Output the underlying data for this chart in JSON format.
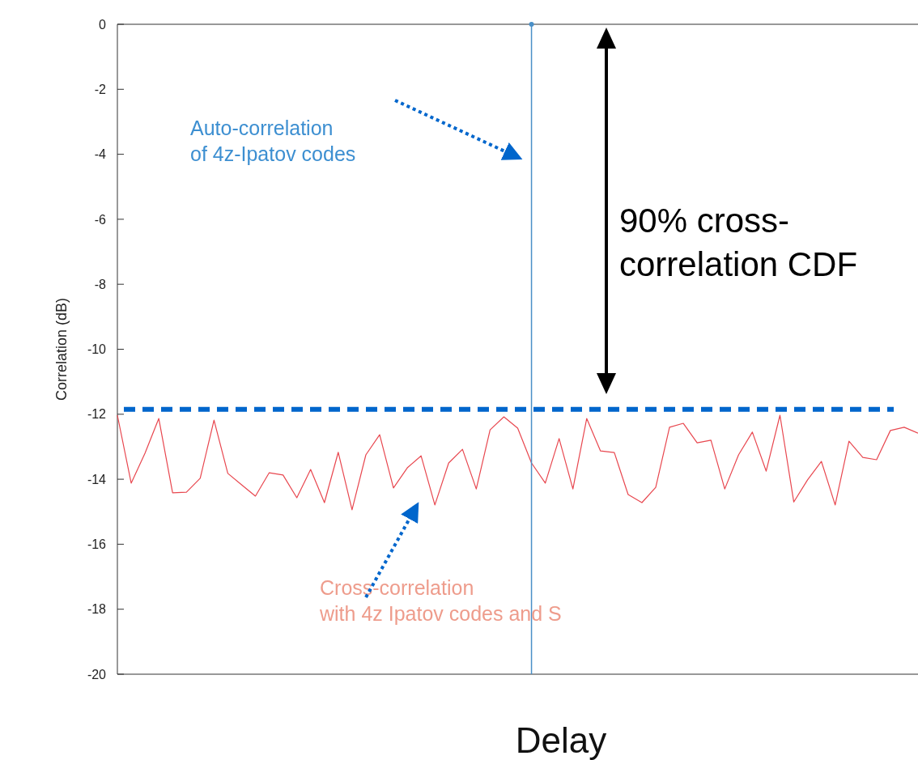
{
  "chart_data": {
    "type": "line",
    "xlabel": "Delay",
    "ylabel": "Correlation (dB)",
    "categories": [
      null,
      null,
      null,
      null,
      null,
      null,
      null,
      null,
      null,
      null,
      null,
      null,
      null,
      null,
      null,
      null,
      null,
      null,
      null,
      null,
      null,
      null,
      null,
      null,
      null,
      null,
      null,
      null,
      null,
      null,
      null,
      null,
      null,
      null,
      null,
      null,
      null,
      null,
      null,
      null,
      null,
      null,
      null,
      null,
      null,
      null,
      null,
      null,
      null,
      null,
      null,
      null,
      null,
      null,
      null,
      null,
      null,
      null,
      null
    ],
    "ylim": [
      -20,
      0
    ],
    "yticks": [
      -20,
      -18,
      -16,
      -14,
      -12,
      -10,
      -8,
      -6,
      -4,
      -2,
      0
    ],
    "tick_labels": "y",
    "marker": "none",
    "series": [
      {
        "color": "#e8474f",
        "values": [
          -12.03,
          -14.12,
          -13.2,
          -12.13,
          -14.42,
          -14.4,
          -13.97,
          -12.18,
          -13.82,
          -14.17,
          -14.52,
          -13.8,
          -13.87,
          -14.57,
          -13.7,
          -14.72,
          -13.17,
          -14.94,
          -13.25,
          -12.63,
          -14.27,
          -13.65,
          -13.28,
          -14.79,
          -13.5,
          -13.08,
          -14.3,
          -12.48,
          -12.08,
          -12.43,
          -13.5,
          -14.12,
          -12.75,
          -14.3,
          -12.13,
          -13.13,
          -13.18,
          -14.47,
          -14.72,
          -14.25,
          -12.4,
          -12.28,
          -12.88,
          -12.8,
          -14.3,
          -13.25,
          -12.55,
          -13.75,
          -12.03,
          -14.7,
          -14.02,
          -13.45,
          -14.79,
          -12.83,
          -13.33,
          -13.4,
          -12.5,
          -12.4,
          -12.58
        ]
      },
      {
        "type": "lollipop",
        "marker": "circle",
        "color": "#4a90c8",
        "values": [
          null,
          null,
          null,
          null,
          null,
          null,
          null,
          null,
          null,
          null,
          null,
          null,
          null,
          null,
          null,
          null,
          null,
          null,
          null,
          null,
          null,
          null,
          null,
          null,
          null,
          null,
          null,
          null,
          null,
          null,
          0,
          null,
          null,
          null,
          null,
          null,
          null,
          null,
          null,
          null,
          null,
          null,
          null,
          null,
          null,
          null,
          null,
          null,
          null,
          null,
          null,
          null,
          null,
          null,
          null,
          null,
          null,
          null,
          null
        ]
      }
    ],
    "ref_lines": [
      {
        "axis": "y",
        "value": -11.85,
        "color": "#0066cc",
        "line_style": "dashed"
      }
    ],
    "annotations": [
      "Auto-correlation\nof 4z-Ipatov codes",
      "Cross-correlation\nwith 4z Ipatov codes and S",
      "90% cross-\ncorrelation CDF"
    ]
  }
}
